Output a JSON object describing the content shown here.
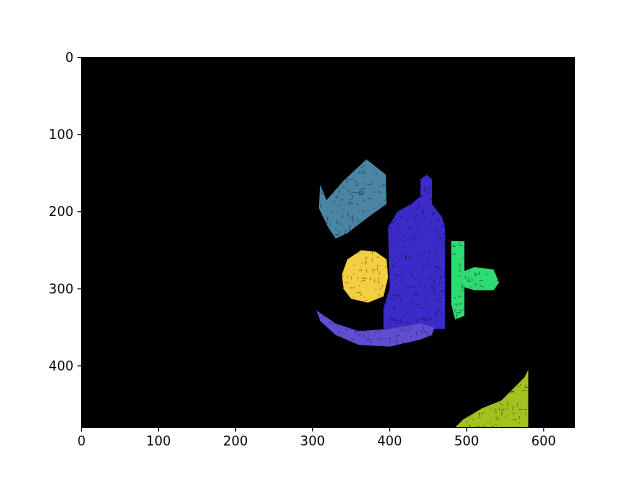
{
  "chart_data": {
    "type": "heatmap",
    "title": "",
    "xlabel": "",
    "ylabel": "",
    "xlim": [
      0,
      640
    ],
    "ylim": [
      480,
      0
    ],
    "y_inverted": true,
    "grid": false,
    "legend": "none",
    "x_ticks": [
      "0",
      "100",
      "200",
      "300",
      "400",
      "500",
      "600"
    ],
    "y_ticks": [
      "0",
      "100",
      "200",
      "300",
      "400"
    ],
    "background_color": "#000000",
    "segments": [
      {
        "label": "steel-blue-blob",
        "color": "#4a86a4",
        "points": [
          [
            310,
            165
          ],
          [
            318,
            185
          ],
          [
            340,
            160
          ],
          [
            370,
            132
          ],
          [
            395,
            152
          ],
          [
            396,
            190
          ],
          [
            375,
            205
          ],
          [
            345,
            228
          ],
          [
            330,
            235
          ],
          [
            320,
            220
          ],
          [
            308,
            195
          ]
        ]
      },
      {
        "label": "purple-bottle",
        "color": "#3b2bc9",
        "points": [
          [
            440,
            158
          ],
          [
            448,
            152
          ],
          [
            455,
            158
          ],
          [
            455,
            190
          ],
          [
            468,
            207
          ],
          [
            472,
            220
          ],
          [
            472,
            352
          ],
          [
            392,
            352
          ],
          [
            392,
            325
          ],
          [
            400,
            300
          ],
          [
            398,
            220
          ],
          [
            410,
            200
          ],
          [
            428,
            190
          ],
          [
            440,
            180
          ]
        ]
      },
      {
        "label": "yellow-circle",
        "color": "#f5cf42",
        "points": [
          [
            338,
            282
          ],
          [
            345,
            262
          ],
          [
            363,
            250
          ],
          [
            382,
            252
          ],
          [
            396,
            262
          ],
          [
            398,
            285
          ],
          [
            392,
            310
          ],
          [
            372,
            318
          ],
          [
            350,
            313
          ],
          [
            340,
            300
          ]
        ]
      },
      {
        "label": "green-handle",
        "color": "#2fdc72",
        "points": [
          [
            480,
            238
          ],
          [
            497,
            238
          ],
          [
            497,
            277
          ],
          [
            510,
            272
          ],
          [
            535,
            275
          ],
          [
            542,
            292
          ],
          [
            535,
            302
          ],
          [
            510,
            302
          ],
          [
            497,
            298
          ],
          [
            497,
            335
          ],
          [
            485,
            340
          ],
          [
            480,
            320
          ]
        ]
      },
      {
        "label": "purple-banana",
        "color": "#5d4fcf",
        "points": [
          [
            305,
            328
          ],
          [
            330,
            345
          ],
          [
            360,
            355
          ],
          [
            400,
            352
          ],
          [
            440,
            345
          ],
          [
            458,
            350
          ],
          [
            455,
            360
          ],
          [
            440,
            366
          ],
          [
            400,
            375
          ],
          [
            360,
            373
          ],
          [
            330,
            360
          ],
          [
            310,
            342
          ]
        ]
      },
      {
        "label": "yellow-green-corner",
        "color": "#a4c21f",
        "points": [
          [
            495,
            470
          ],
          [
            520,
            455
          ],
          [
            545,
            445
          ],
          [
            560,
            430
          ],
          [
            575,
            415
          ],
          [
            580,
            405
          ],
          [
            580,
            480
          ],
          [
            485,
            480
          ]
        ]
      }
    ]
  }
}
